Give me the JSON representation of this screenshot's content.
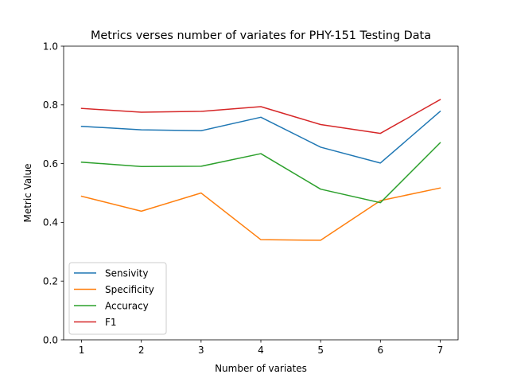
{
  "chart_data": {
    "type": "line",
    "title": "Metrics verses number of variates for PHY-151 Testing Data",
    "xlabel": "Number of variates",
    "ylabel": "Metric Value",
    "x": [
      1,
      2,
      3,
      4,
      5,
      6,
      7
    ],
    "xlim": [
      0.7,
      7.3
    ],
    "ylim": [
      0.0,
      1.0
    ],
    "xticks": [
      "1",
      "2",
      "3",
      "4",
      "5",
      "6",
      "7"
    ],
    "yticks": [
      "0.0",
      "0.2",
      "0.4",
      "0.6",
      "0.8",
      "1.0"
    ],
    "grid": false,
    "legend_position": "lower-left",
    "series": [
      {
        "name": "Sensivity",
        "color": "#1f77b4",
        "values": [
          0.727,
          0.715,
          0.712,
          0.758,
          0.656,
          0.602,
          0.778
        ]
      },
      {
        "name": "Specificity",
        "color": "#ff7f0e",
        "values": [
          0.489,
          0.438,
          0.5,
          0.341,
          0.339,
          0.474,
          0.517
        ]
      },
      {
        "name": "Accuracy",
        "color": "#2ca02c",
        "values": [
          0.605,
          0.59,
          0.591,
          0.634,
          0.513,
          0.467,
          0.671
        ]
      },
      {
        "name": "F1",
        "color": "#d62728",
        "values": [
          0.788,
          0.775,
          0.778,
          0.794,
          0.733,
          0.703,
          0.818
        ]
      }
    ]
  }
}
